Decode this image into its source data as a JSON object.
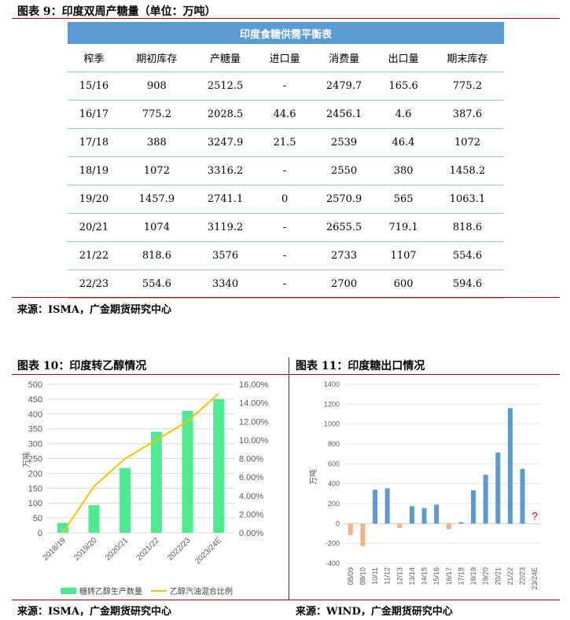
{
  "fig9": {
    "title": "图表 9：印度双周产糖量（单位：万吨）",
    "source": "来源：ISMA，广金期货研究中心"
  },
  "table": {
    "caption": "印度食糖供需平衡表",
    "headers": [
      "榨季",
      "期初库存",
      "产糖量",
      "进口量",
      "消费量",
      "出口量",
      "期末库存"
    ],
    "rows": [
      [
        "15/16",
        "908",
        "2512.5",
        "-",
        "2479.7",
        "165.6",
        "775.2"
      ],
      [
        "16/17",
        "775.2",
        "2028.5",
        "44.6",
        "2456.1",
        "4.6",
        "387.6"
      ],
      [
        "17/18",
        "388",
        "3247.9",
        "21.5",
        "2539",
        "46.4",
        "1072"
      ],
      [
        "18/19",
        "1072",
        "3316.2",
        "-",
        "2550",
        "380",
        "1458.2"
      ],
      [
        "19/20",
        "1457.9",
        "2741.1",
        "0",
        "2570.9",
        "565",
        "1063.1"
      ],
      [
        "20/21",
        "1074",
        "3119.2",
        "-",
        "2655.5",
        "719.1",
        "818.6"
      ],
      [
        "21/22",
        "818.6",
        "3576",
        "-",
        "2733",
        "1107",
        "554.6"
      ],
      [
        "22/23",
        "554.6",
        "3340",
        "-",
        "2700",
        "600",
        "594.6"
      ]
    ]
  },
  "fig10": {
    "title": "图表 10：印度转乙醇情况",
    "source": "来源：ISMA，广金期货研究中心"
  },
  "fig11": {
    "title": "图表 11：印度糖出口情况",
    "source": "来源：WIND，广金期货研究中心"
  },
  "chart_data": [
    {
      "type": "bar+line",
      "categories": [
        "2018/19",
        "2019/20",
        "2020/21",
        "2021/22",
        "2022/23",
        "2023/24E"
      ],
      "ylabel": "万吨",
      "ylim": [
        0,
        500
      ],
      "yticks": [
        "0",
        "50",
        "100",
        "150",
        "200",
        "250",
        "300",
        "350",
        "400",
        "450",
        "500"
      ],
      "y2lim": [
        0,
        16
      ],
      "y2ticks": [
        "0.00%",
        "2.00%",
        "4.00%",
        "6.00%",
        "8.00%",
        "10.00%",
        "12.00%",
        "14.00%",
        "16.00%"
      ],
      "series": [
        {
          "name": "糖转乙醇生产数量",
          "type": "bar",
          "color": "#4ceb8f",
          "values": [
            33,
            93,
            218,
            340,
            410,
            450
          ]
        },
        {
          "name": "乙醇汽油混合比例",
          "type": "line",
          "axis": "right",
          "color": "#ffc000",
          "values": [
            0,
            5,
            8,
            10,
            12,
            15
          ]
        }
      ],
      "legend": "bottom",
      "grid": true
    },
    {
      "type": "bar",
      "categories": [
        "08/09",
        "09/10",
        "10/11",
        "11/12",
        "12/13",
        "13/14",
        "14/15",
        "15/16",
        "16/17",
        "17/18",
        "18/19",
        "19/20",
        "20/21",
        "21/22",
        "22/23",
        "23/24E"
      ],
      "values": [
        -115,
        -225,
        340,
        355,
        -45,
        175,
        155,
        190,
        -55,
        15,
        335,
        490,
        715,
        1160,
        550,
        null
      ],
      "ylabel": "万吨",
      "ylim": [
        -400,
        1400
      ],
      "yticks": [
        "-400",
        "-200",
        "0",
        "200",
        "400",
        "600",
        "800",
        "1000",
        "1200",
        "1400"
      ],
      "positive_color": "#5b9bd5",
      "negative_color": "#f4b183",
      "annotation": "?",
      "annotation_color": "#ff0000",
      "grid": true
    }
  ]
}
